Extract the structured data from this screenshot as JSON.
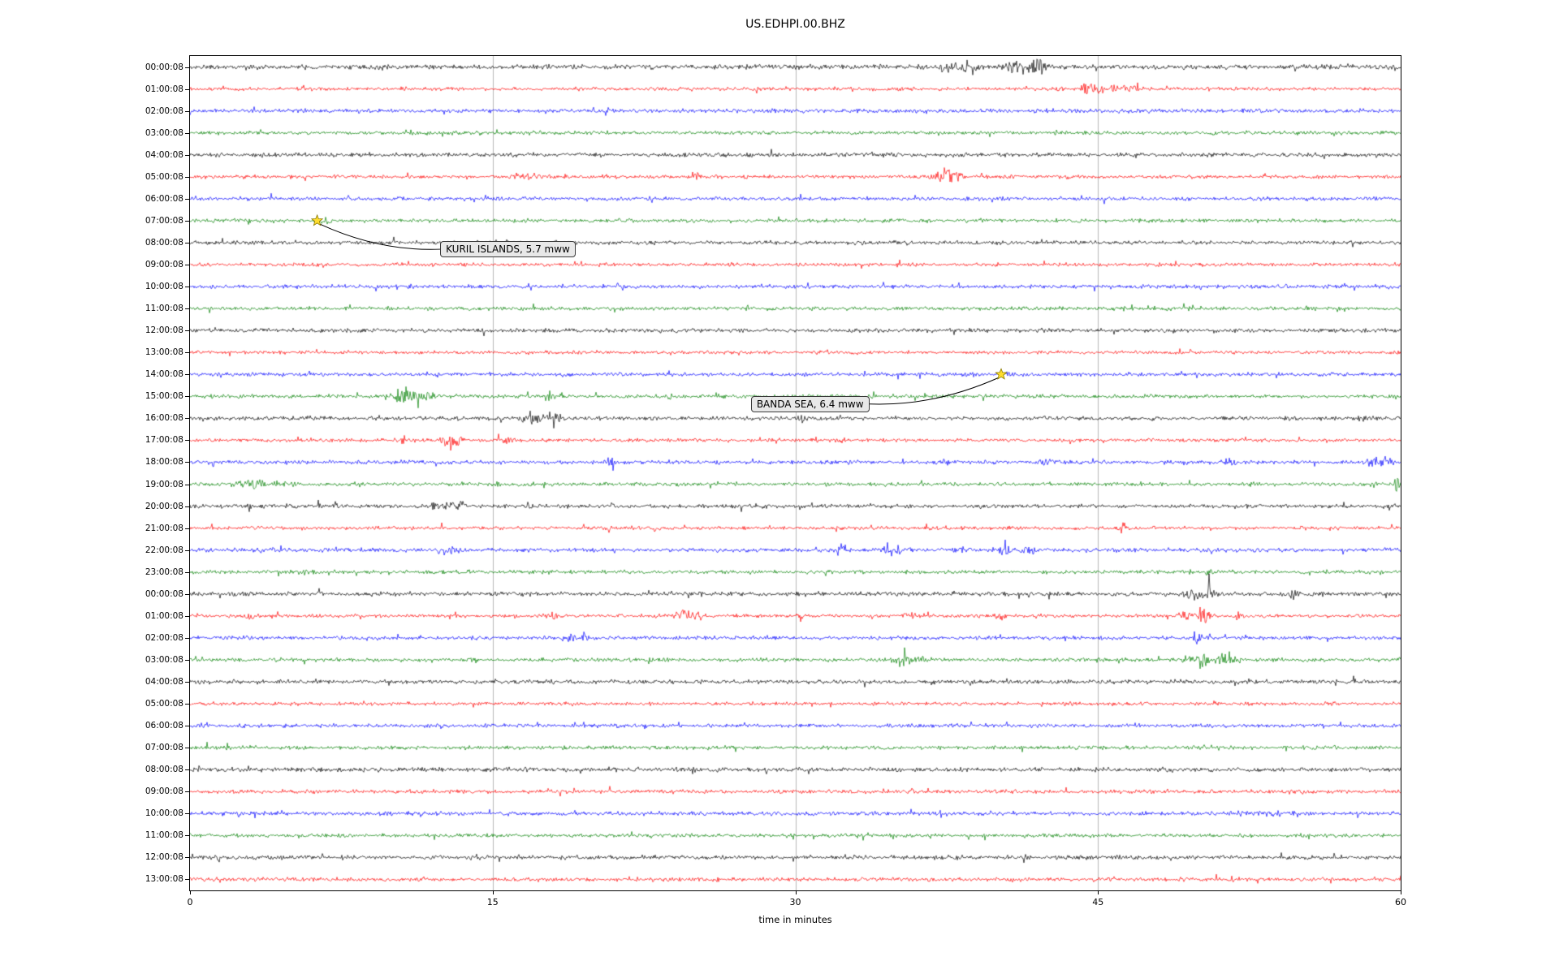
{
  "chart_data": {
    "type": "line",
    "title": "US.EDHPI.00.BHZ",
    "xlabel": "time in minutes",
    "xlim": [
      0,
      60
    ],
    "xticks": [
      0,
      15,
      30,
      45,
      60
    ],
    "grid": true,
    "legend": "none",
    "palette": {
      "k": "#000000",
      "r": "#ff0000",
      "b": "#0000ff",
      "g": "#008000"
    },
    "grid_color": "#b0b0b0",
    "star_color": "#ffdd30",
    "rows": [
      {
        "label": "00:00:08",
        "color": "k",
        "amp": 2.0,
        "bursts": [
          [
            38,
            0.8,
            2.5
          ],
          [
            40.8,
            0.5,
            4
          ],
          [
            42,
            0.5,
            3
          ]
        ]
      },
      {
        "label": "01:00:08",
        "color": "r",
        "amp": 1.5,
        "bursts": [
          [
            44.6,
            0.4,
            4
          ],
          [
            45.8,
            0.7,
            2.5
          ],
          [
            47,
            0.3,
            2
          ],
          [
            51.8,
            0.15,
            1.5
          ]
        ]
      },
      {
        "label": "02:00:08",
        "color": "b",
        "amp": 1.8,
        "bursts": []
      },
      {
        "label": "03:00:08",
        "color": "g",
        "amp": 1.6,
        "bursts": [
          [
            12.6,
            0.3,
            1
          ]
        ]
      },
      {
        "label": "04:00:08",
        "color": "k",
        "amp": 1.8,
        "bursts": []
      },
      {
        "label": "05:00:08",
        "color": "r",
        "amp": 1.5,
        "bursts": [
          [
            16.5,
            0.8,
            1.5
          ],
          [
            20.8,
            0.2,
            1.5
          ],
          [
            25.2,
            0.25,
            2.5
          ],
          [
            26,
            0.2,
            1.5
          ],
          [
            37.4,
            0.5,
            5
          ],
          [
            38.1,
            0.3,
            2
          ]
        ]
      },
      {
        "label": "06:00:08",
        "color": "b",
        "amp": 1.6,
        "bursts": []
      },
      {
        "label": "07:00:08",
        "color": "g",
        "amp": 1.6,
        "bursts": [
          [
            6.6,
            0.3,
            1.2
          ]
        ]
      },
      {
        "label": "08:00:08",
        "color": "k",
        "amp": 1.7,
        "bursts": []
      },
      {
        "label": "09:00:08",
        "color": "r",
        "amp": 1.5,
        "bursts": []
      },
      {
        "label": "10:00:08",
        "color": "b",
        "amp": 1.7,
        "bursts": []
      },
      {
        "label": "11:00:08",
        "color": "g",
        "amp": 1.6,
        "bursts": []
      },
      {
        "label": "12:00:08",
        "color": "k",
        "amp": 1.7,
        "bursts": []
      },
      {
        "label": "13:00:08",
        "color": "r",
        "amp": 1.4,
        "bursts": []
      },
      {
        "label": "14:00:08",
        "color": "b",
        "amp": 1.6,
        "bursts": [
          [
            40.5,
            0.3,
            0.8
          ]
        ]
      },
      {
        "label": "15:00:08",
        "color": "g",
        "amp": 1.6,
        "bursts": [
          [
            10.4,
            0.4,
            4.5
          ],
          [
            11.3,
            0.7,
            3
          ],
          [
            17.8,
            0.25,
            1.8
          ],
          [
            23.8,
            0.2,
            1.2
          ]
        ]
      },
      {
        "label": "16:00:08",
        "color": "k",
        "amp": 1.7,
        "bursts": [
          [
            16.9,
            0.4,
            2.5
          ],
          [
            18,
            0.35,
            3.5
          ],
          [
            30.3,
            0.15,
            2
          ],
          [
            58,
            0.2,
            2.5
          ]
        ]
      },
      {
        "label": "17:00:08",
        "color": "r",
        "amp": 1.5,
        "bursts": [
          [
            10.7,
            0.3,
            2
          ],
          [
            12.9,
            0.45,
            5
          ],
          [
            15.7,
            0.3,
            1.5
          ],
          [
            32.3,
            0.2,
            1.2
          ]
        ]
      },
      {
        "label": "18:00:08",
        "color": "b",
        "amp": 1.7,
        "bursts": [
          [
            20.8,
            0.3,
            1.5
          ],
          [
            37.4,
            0.3,
            1.2
          ],
          [
            42.4,
            0.4,
            1.5
          ],
          [
            51.5,
            0.3,
            1.5
          ],
          [
            59,
            0.5,
            2.5
          ]
        ]
      },
      {
        "label": "19:00:08",
        "color": "g",
        "amp": 1.6,
        "bursts": [
          [
            3,
            1.2,
            1.8
          ],
          [
            15.2,
            0.2,
            1.2
          ],
          [
            16.8,
            0.12,
            2.5
          ],
          [
            59.8,
            0.15,
            4
          ]
        ]
      },
      {
        "label": "20:00:08",
        "color": "k",
        "amp": 1.7,
        "bursts": [
          [
            2.9,
            0.1,
            2
          ],
          [
            7.2,
            0.1,
            2.5
          ],
          [
            12.3,
            0.4,
            2.5
          ],
          [
            13.3,
            0.4,
            2
          ],
          [
            16.8,
            0.2,
            1.5
          ]
        ]
      },
      {
        "label": "21:00:08",
        "color": "r",
        "amp": 1.5,
        "bursts": [
          [
            1.2,
            0.2,
            2
          ],
          [
            20.8,
            0.12,
            2.5
          ],
          [
            46.2,
            0.15,
            3
          ]
        ]
      },
      {
        "label": "22:00:08",
        "color": "b",
        "amp": 1.7,
        "bursts": [
          [
            12.7,
            0.5,
            2
          ],
          [
            32.3,
            0.3,
            1.8
          ],
          [
            35,
            0.6,
            2
          ],
          [
            38.1,
            0.3,
            1.5
          ],
          [
            40.4,
            0.25,
            3.5
          ],
          [
            41.5,
            0.3,
            1.5
          ]
        ]
      },
      {
        "label": "23:00:08",
        "color": "g",
        "amp": 1.6,
        "bursts": [
          [
            5.7,
            0.4,
            1
          ],
          [
            50.5,
            0.2,
            1.2
          ]
        ]
      },
      {
        "label": "00:00:08",
        "color": "k",
        "amp": 1.8,
        "bursts": [
          [
            6.4,
            0.1,
            2.5
          ],
          [
            25.3,
            0.1,
            1.5
          ],
          [
            49.8,
            0.5,
            3
          ],
          [
            50.5,
            0.3,
            3
          ],
          [
            54.7,
            0.25,
            2.5
          ]
        ]
      },
      {
        "label": "01:00:08",
        "color": "r",
        "amp": 1.5,
        "bursts": [
          [
            2.9,
            0.2,
            1.5
          ],
          [
            18,
            0.3,
            1.5
          ],
          [
            24.5,
            0.4,
            2.5
          ],
          [
            25.2,
            0.2,
            2
          ],
          [
            30.3,
            0.2,
            1.5
          ],
          [
            35.6,
            0.3,
            1.8
          ],
          [
            40.1,
            0.25,
            1.8
          ],
          [
            49.3,
            0.3,
            2
          ],
          [
            50.1,
            0.4,
            4
          ],
          [
            52,
            0.2,
            1.5
          ]
        ]
      },
      {
        "label": "02:00:08",
        "color": "b",
        "amp": 1.6,
        "bursts": [
          [
            18.8,
            0.25,
            2
          ],
          [
            19.5,
            0.2,
            1.5
          ],
          [
            49.9,
            0.2,
            3.5
          ]
        ]
      },
      {
        "label": "03:00:08",
        "color": "g",
        "amp": 1.6,
        "bursts": [
          [
            5.7,
            0.15,
            2.5
          ],
          [
            35.3,
            0.5,
            2.5
          ],
          [
            36.2,
            0.3,
            2
          ],
          [
            49.9,
            0.5,
            4.5
          ],
          [
            51.2,
            0.3,
            3
          ],
          [
            51.8,
            0.2,
            2
          ]
        ]
      },
      {
        "label": "04:00:08",
        "color": "k",
        "amp": 1.8,
        "bursts": []
      },
      {
        "label": "05:00:08",
        "color": "r",
        "amp": 1.5,
        "bursts": []
      },
      {
        "label": "06:00:08",
        "color": "b",
        "amp": 1.6,
        "bursts": [
          [
            37.4,
            0.4,
            0.8
          ]
        ]
      },
      {
        "label": "07:00:08",
        "color": "g",
        "amp": 1.6,
        "bursts": []
      },
      {
        "label": "08:00:08",
        "color": "k",
        "amp": 1.9,
        "bursts": []
      },
      {
        "label": "09:00:08",
        "color": "r",
        "amp": 1.6,
        "bursts": []
      },
      {
        "label": "10:00:08",
        "color": "b",
        "amp": 1.7,
        "bursts": [
          [
            53,
            1.5,
            0.5
          ]
        ]
      },
      {
        "label": "11:00:08",
        "color": "g",
        "amp": 1.6,
        "bursts": []
      },
      {
        "label": "12:00:08",
        "color": "k",
        "amp": 1.8,
        "bursts": [
          [
            1.4,
            0.1,
            1.5
          ]
        ]
      },
      {
        "label": "13:00:08",
        "color": "r",
        "amp": 1.7,
        "bursts": []
      }
    ],
    "annotations": [
      {
        "label": "KURIL ISLANDS, 5.7 mww",
        "star": {
          "row": 7,
          "minute": 6.3
        },
        "box": {
          "row": 8.3,
          "minute": 12.4
        }
      },
      {
        "label": "BANDA SEA, 6.4 mww",
        "star": {
          "row": 14,
          "minute": 40.2
        },
        "box": {
          "row": 15.35,
          "minute": 27.8
        }
      }
    ]
  }
}
